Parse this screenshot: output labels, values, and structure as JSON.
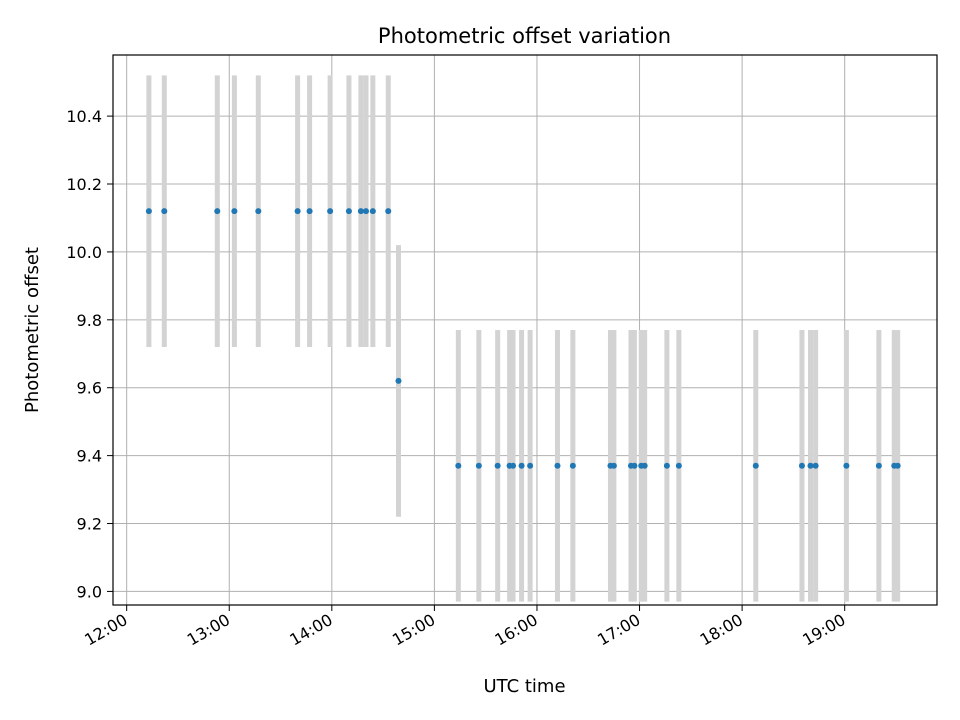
{
  "chart_data": {
    "type": "scatter",
    "title": "Photometric offset variation",
    "xlabel": "UTC time",
    "ylabel": "Photometric offset",
    "x_is_time": true,
    "x_tick_labels": [
      "12:00",
      "13:00",
      "14:00",
      "15:00",
      "16:00",
      "17:00",
      "18:00",
      "19:00"
    ],
    "y_ticks": [
      9.0,
      9.2,
      9.4,
      9.6,
      9.8,
      10.0,
      10.2,
      10.4
    ],
    "y_tick_labels": [
      "9.0",
      "9.2",
      "9.4",
      "9.6",
      "9.8",
      "10.0",
      "10.2",
      "10.4"
    ],
    "xlim": [
      "11:52",
      "19:54"
    ],
    "ylim": [
      8.96,
      10.58
    ],
    "grid": true,
    "error_bar_halfwidth": 0.4,
    "marker_color": "#1f77b4",
    "error_bar_color": "#d3d3d3",
    "points": [
      {
        "x": "12:13",
        "y": 10.12
      },
      {
        "x": "12:22",
        "y": 10.12
      },
      {
        "x": "12:53",
        "y": 10.12
      },
      {
        "x": "13:03",
        "y": 10.12
      },
      {
        "x": "13:17",
        "y": 10.12
      },
      {
        "x": "13:40",
        "y": 10.12
      },
      {
        "x": "13:47",
        "y": 10.12
      },
      {
        "x": "13:59",
        "y": 10.12
      },
      {
        "x": "14:10",
        "y": 10.12
      },
      {
        "x": "14:17",
        "y": 10.12
      },
      {
        "x": "14:20",
        "y": 10.12
      },
      {
        "x": "14:24",
        "y": 10.12
      },
      {
        "x": "14:33",
        "y": 10.12
      },
      {
        "x": "14:39",
        "y": 9.62
      },
      {
        "x": "15:14",
        "y": 9.37
      },
      {
        "x": "15:26",
        "y": 9.37
      },
      {
        "x": "15:37",
        "y": 9.37
      },
      {
        "x": "15:44",
        "y": 9.37
      },
      {
        "x": "15:46",
        "y": 9.37
      },
      {
        "x": "15:51",
        "y": 9.37
      },
      {
        "x": "15:56",
        "y": 9.37
      },
      {
        "x": "16:12",
        "y": 9.37
      },
      {
        "x": "16:21",
        "y": 9.37
      },
      {
        "x": "16:43",
        "y": 9.37
      },
      {
        "x": "16:45",
        "y": 9.37
      },
      {
        "x": "16:55",
        "y": 9.37
      },
      {
        "x": "16:57",
        "y": 9.37
      },
      {
        "x": "17:01",
        "y": 9.37
      },
      {
        "x": "17:03",
        "y": 9.37
      },
      {
        "x": "17:16",
        "y": 9.37
      },
      {
        "x": "17:23",
        "y": 9.37
      },
      {
        "x": "18:08",
        "y": 9.37
      },
      {
        "x": "18:35",
        "y": 9.37
      },
      {
        "x": "18:40",
        "y": 9.37
      },
      {
        "x": "18:43",
        "y": 9.37
      },
      {
        "x": "19:01",
        "y": 9.37
      },
      {
        "x": "19:20",
        "y": 9.37
      },
      {
        "x": "19:29",
        "y": 9.37
      },
      {
        "x": "19:31",
        "y": 9.37
      }
    ]
  }
}
